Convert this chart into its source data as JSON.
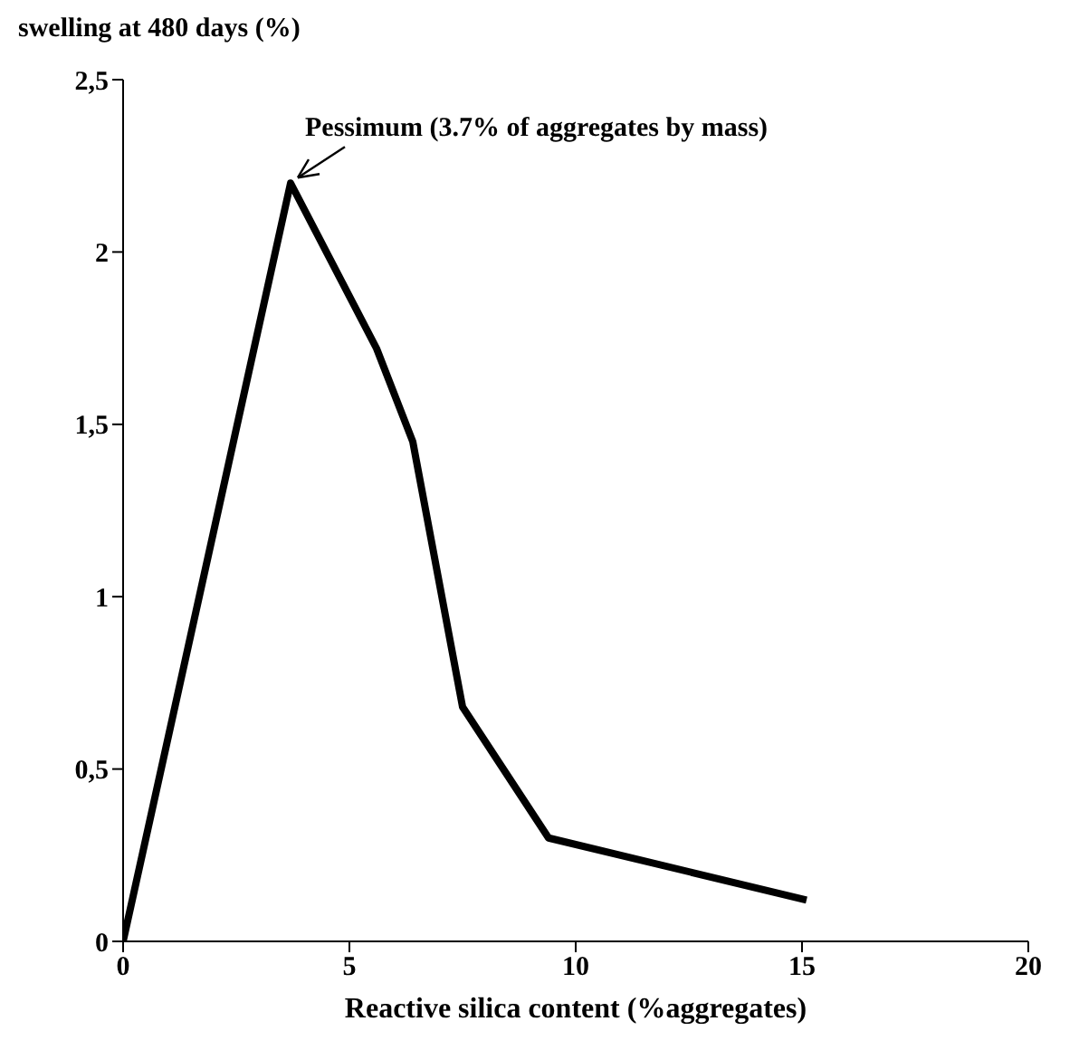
{
  "chart_data": {
    "type": "line",
    "ylabel": "swelling at 480 days (%)",
    "xlabel": "Reactive silica content (%aggregates)",
    "x": [
      0,
      3.7,
      5.6,
      6.4,
      7.5,
      9.4,
      15.1
    ],
    "series": [
      {
        "color": "#000000",
        "values": [
          0,
          2.2,
          1.72,
          1.45,
          0.68,
          0.3,
          0.12
        ]
      }
    ],
    "xlim": [
      0,
      20
    ],
    "xticks": [
      0,
      5,
      10,
      15,
      20
    ],
    "ylim": [
      0,
      2.5
    ],
    "yticks": [
      0,
      {
        "value": 0.5,
        "label": "0,5"
      },
      1,
      {
        "value": 1.5,
        "label": "1,5"
      },
      2,
      {
        "value": 2.5,
        "label": "2,5"
      }
    ],
    "annotations": [
      {
        "text": "Pessimum (3.7% of aggregates by mass)",
        "x": 3.7,
        "y": 2.2
      }
    ],
    "grid": false,
    "legend": false,
    "marker": "none",
    "line_style": "solid"
  }
}
